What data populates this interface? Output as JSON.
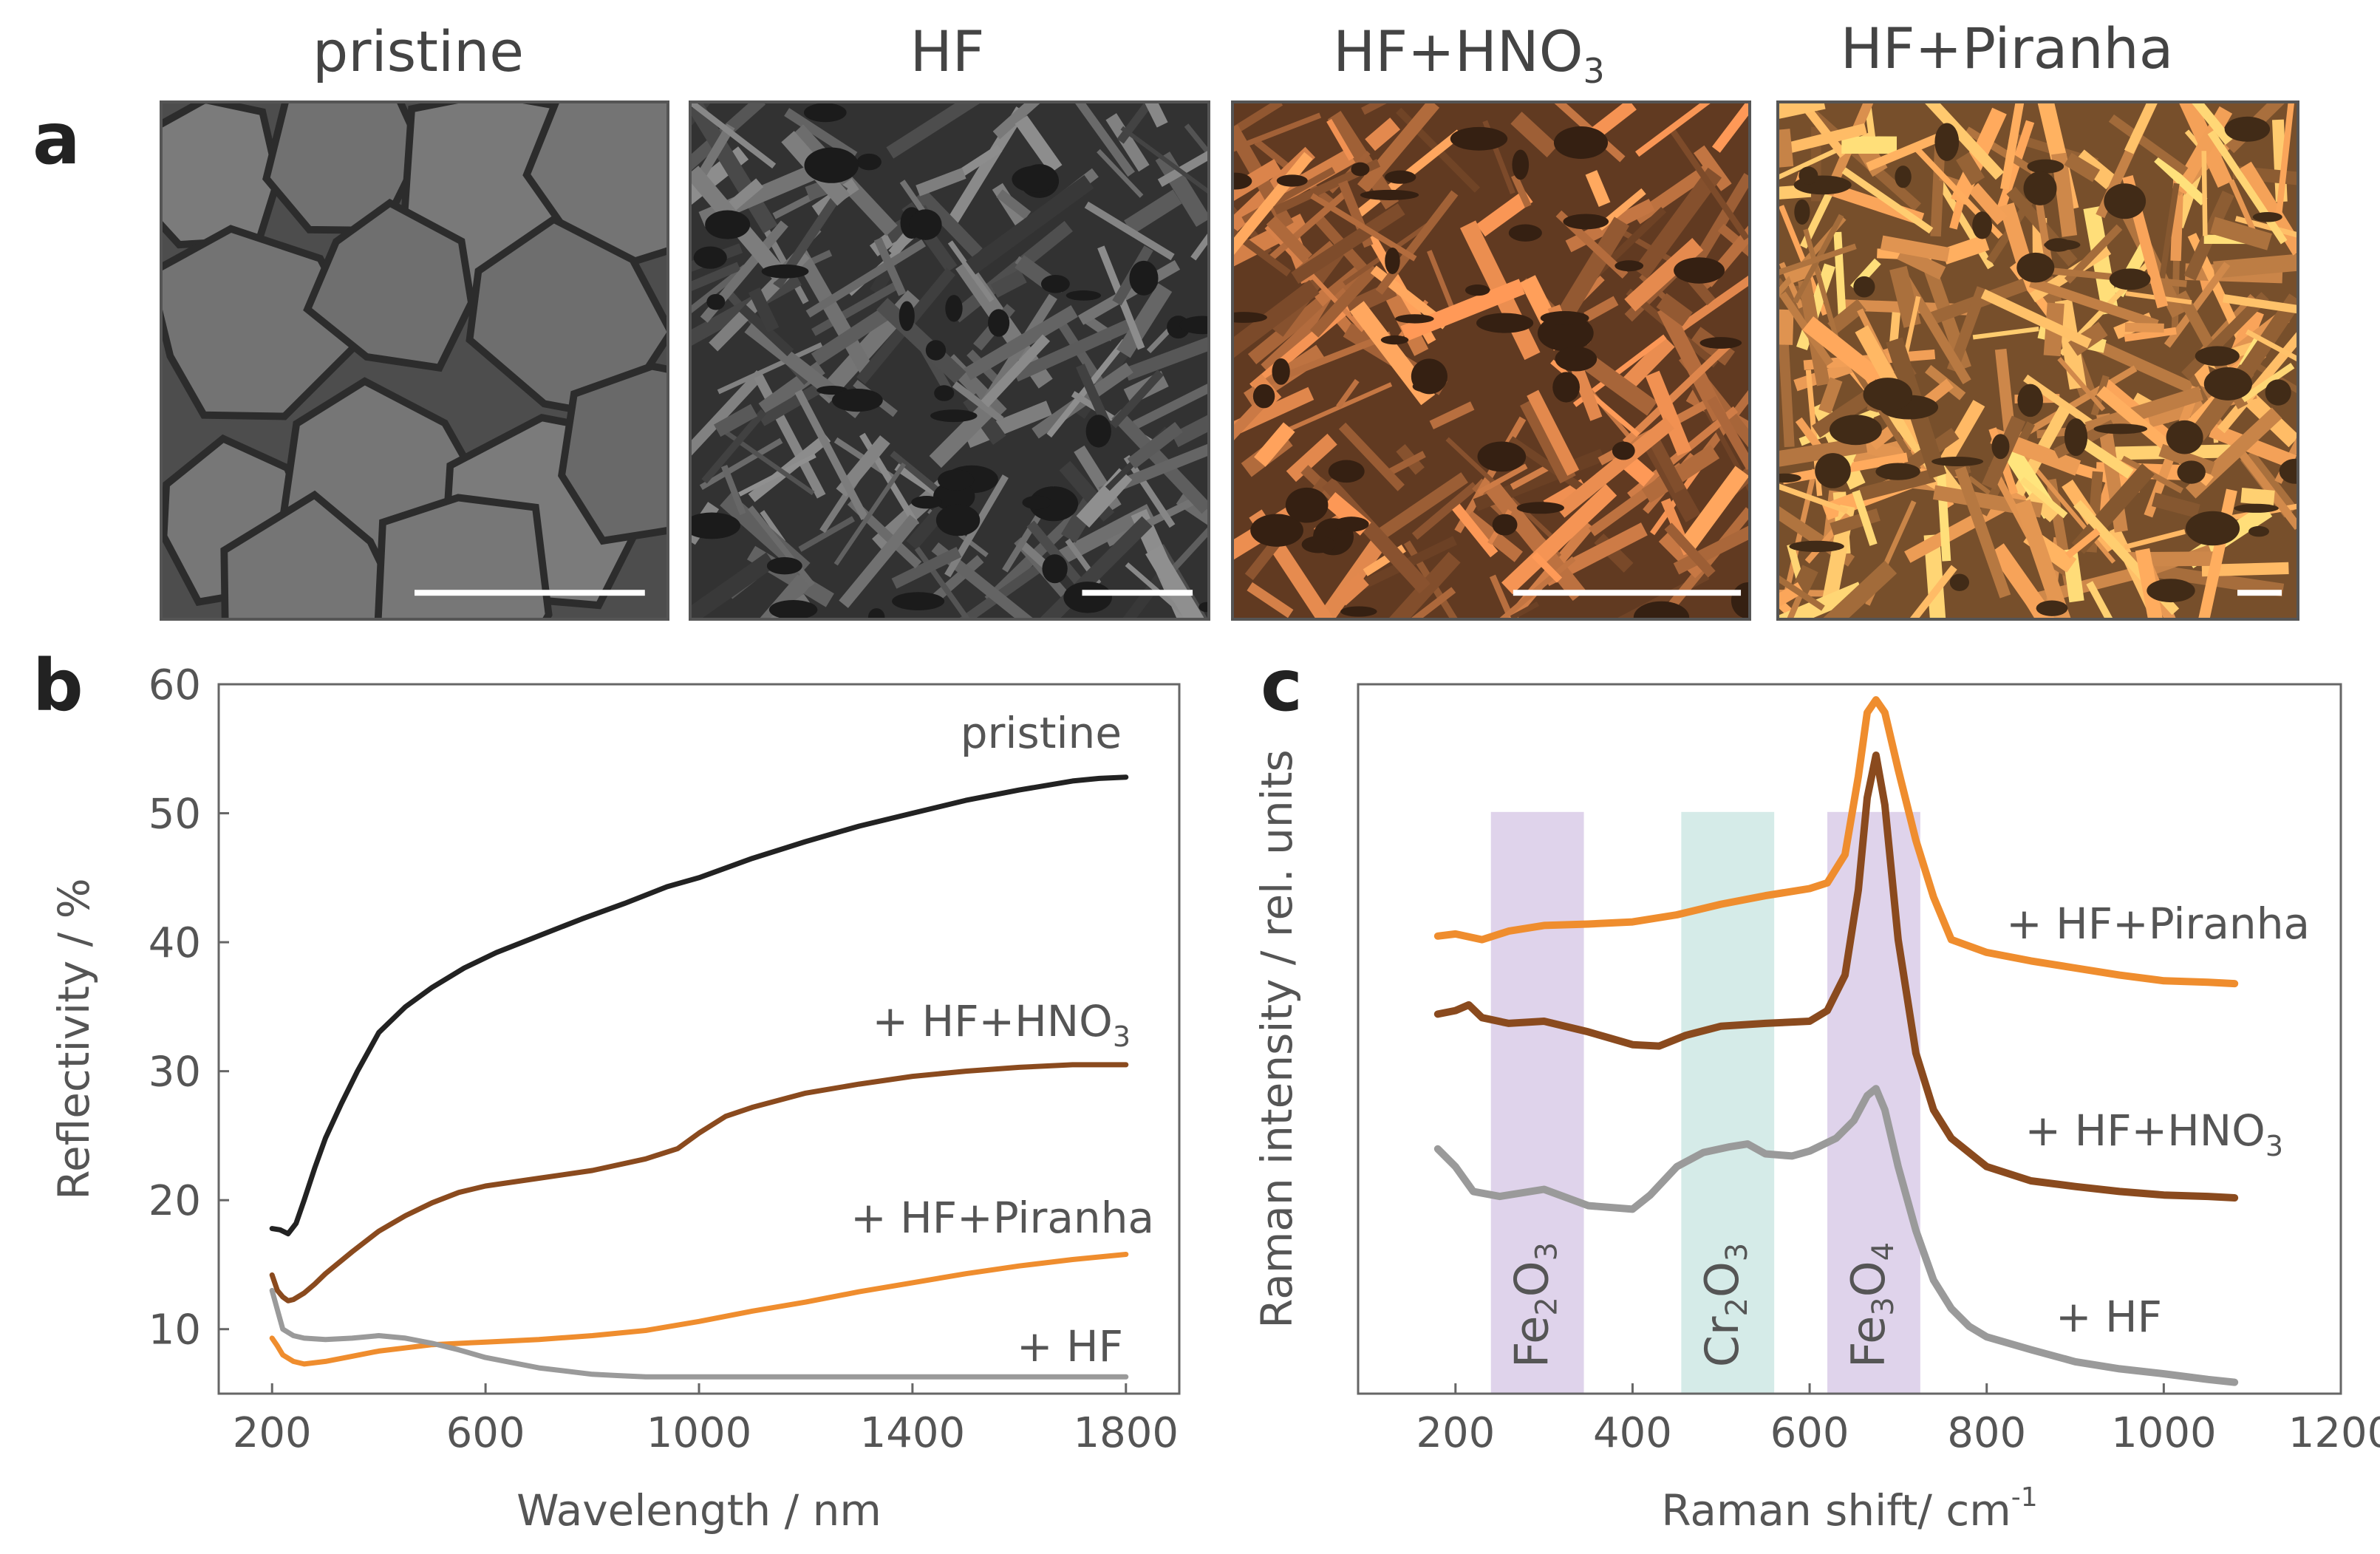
{
  "panel_labels": {
    "a": "a",
    "b": "b",
    "c": "c"
  },
  "sem_panels": [
    {
      "title": "pristine",
      "title_sub": "",
      "title_tail": "",
      "style": "gray-grains",
      "base_color": "#6e6e6e"
    },
    {
      "title": "HF",
      "title_sub": "",
      "title_tail": "",
      "style": "gray-plates",
      "base_color": "#5a5a5a"
    },
    {
      "title": "HF+HNO",
      "title_sub": "3",
      "title_tail": "",
      "style": "copper-plates",
      "base_color": "#b06a3c"
    },
    {
      "title": "HF+Piranha",
      "title_sub": "",
      "title_tail": "",
      "style": "orange-porous",
      "base_color": "#d98f4e"
    }
  ],
  "chart_data": [
    {
      "type": "line",
      "panel": "b",
      "xlabel": "Wavelength / nm",
      "ylabel": "Reflectivity / %",
      "xlim": [
        100,
        1900
      ],
      "ylim": [
        5,
        60
      ],
      "xticks": [
        200,
        600,
        1000,
        1400,
        1800
      ],
      "yticks": [
        10,
        20,
        30,
        40,
        50,
        60
      ],
      "grid": false,
      "series": [
        {
          "name": "pristine",
          "label": "pristine",
          "label_sub": "",
          "color": "#222222",
          "x": [
            200,
            215,
            230,
            245,
            260,
            280,
            300,
            330,
            360,
            400,
            450,
            500,
            560,
            620,
            700,
            780,
            860,
            940,
            1000,
            1100,
            1200,
            1300,
            1400,
            1500,
            1600,
            1700,
            1750,
            1800
          ],
          "y": [
            17.8,
            17.7,
            17.4,
            18.2,
            20.0,
            22.5,
            24.8,
            27.5,
            30.0,
            33.0,
            35.0,
            36.5,
            38.0,
            39.2,
            40.5,
            41.8,
            43.0,
            44.3,
            45.0,
            46.5,
            47.8,
            49.0,
            50.0,
            51.0,
            51.8,
            52.5,
            52.7,
            52.8
          ]
        },
        {
          "name": "+ HF+HNO3",
          "label": "+ HF+HNO",
          "label_sub": "3",
          "color": "#8a4a1e",
          "x": [
            200,
            210,
            220,
            230,
            240,
            260,
            280,
            300,
            350,
            400,
            450,
            500,
            550,
            600,
            700,
            800,
            900,
            960,
            1000,
            1050,
            1100,
            1200,
            1300,
            1400,
            1500,
            1600,
            1700,
            1800
          ],
          "y": [
            14.2,
            13.0,
            12.5,
            12.2,
            12.3,
            12.8,
            13.5,
            14.3,
            16.0,
            17.6,
            18.8,
            19.8,
            20.6,
            21.1,
            21.7,
            22.3,
            23.2,
            24.0,
            25.2,
            26.5,
            27.2,
            28.3,
            29.0,
            29.6,
            30.0,
            30.3,
            30.5,
            30.5
          ]
        },
        {
          "name": "+ HF+Piranha",
          "label": "+ HF+Piranha",
          "label_sub": "",
          "color": "#ef8d2e",
          "x": [
            200,
            210,
            220,
            240,
            260,
            280,
            300,
            350,
            400,
            500,
            600,
            700,
            800,
            900,
            1000,
            1100,
            1200,
            1300,
            1400,
            1500,
            1600,
            1700,
            1800
          ],
          "y": [
            9.3,
            8.7,
            8.0,
            7.5,
            7.3,
            7.4,
            7.5,
            7.9,
            8.3,
            8.8,
            9.0,
            9.2,
            9.5,
            9.9,
            10.6,
            11.4,
            12.1,
            12.9,
            13.6,
            14.3,
            14.9,
            15.4,
            15.8
          ]
        },
        {
          "name": "+ HF",
          "label": "+ HF",
          "label_sub": "",
          "color": "#9a9a9a",
          "x": [
            200,
            210,
            220,
            240,
            260,
            300,
            350,
            400,
            450,
            500,
            550,
            600,
            700,
            800,
            850,
            900,
            1000,
            1200,
            1400,
            1600,
            1800
          ],
          "y": [
            13.0,
            11.5,
            10.0,
            9.5,
            9.3,
            9.2,
            9.3,
            9.5,
            9.3,
            8.9,
            8.4,
            7.8,
            7.0,
            6.5,
            6.4,
            6.3,
            6.3,
            6.3,
            6.3,
            6.3,
            6.3
          ]
        }
      ]
    },
    {
      "type": "line",
      "panel": "c",
      "xlabel": "Raman shift/ cm",
      "xlabel_sup": "-1",
      "ylabel": "Raman intensity / rel. units",
      "xlim": [
        90,
        1200
      ],
      "ylim": [
        0,
        1
      ],
      "xticks": [
        200,
        400,
        600,
        800,
        1000,
        1200
      ],
      "yticks": [],
      "grid": false,
      "bands": [
        {
          "name": "Fe2O3",
          "label": "Fe",
          "sub1": "2",
          "mid": "O",
          "sub2": "3",
          "x0": 240,
          "x1": 345,
          "color": "#c9b6dd"
        },
        {
          "name": "Cr2O3",
          "label": "Cr",
          "sub1": "2",
          "mid": "O",
          "sub2": "3",
          "x0": 455,
          "x1": 560,
          "color": "#b9ddd9"
        },
        {
          "name": "Fe3O4",
          "label": "Fe",
          "sub1": "3",
          "mid": "O",
          "sub2": "4",
          "x0": 620,
          "x1": 725,
          "color": "#c9b6dd"
        }
      ],
      "series": [
        {
          "name": "+ HF+Piranha",
          "label": "+ HF+Piranha",
          "label_sub": "",
          "color": "#ef8d2e",
          "x": [
            180,
            200,
            230,
            260,
            300,
            350,
            400,
            450,
            500,
            550,
            600,
            620,
            640,
            655,
            665,
            675,
            685,
            700,
            720,
            740,
            760,
            800,
            850,
            900,
            950,
            1000,
            1050,
            1080
          ],
          "y": [
            0.645,
            0.648,
            0.64,
            0.652,
            0.66,
            0.662,
            0.665,
            0.675,
            0.69,
            0.702,
            0.712,
            0.72,
            0.76,
            0.87,
            0.96,
            0.978,
            0.96,
            0.88,
            0.78,
            0.7,
            0.64,
            0.622,
            0.61,
            0.6,
            0.59,
            0.582,
            0.58,
            0.578
          ]
        },
        {
          "name": "+ HF+HNO3",
          "label": "+ HF+HNO",
          "label_sub": "3",
          "color": "#8a4a1e",
          "x": [
            180,
            200,
            215,
            230,
            260,
            300,
            350,
            400,
            430,
            460,
            500,
            550,
            600,
            620,
            640,
            655,
            665,
            675,
            685,
            700,
            720,
            740,
            760,
            800,
            850,
            900,
            950,
            1000,
            1050,
            1080
          ],
          "y": [
            0.535,
            0.54,
            0.548,
            0.53,
            0.522,
            0.525,
            0.51,
            0.492,
            0.49,
            0.505,
            0.518,
            0.522,
            0.525,
            0.54,
            0.59,
            0.71,
            0.84,
            0.9,
            0.83,
            0.64,
            0.48,
            0.4,
            0.36,
            0.32,
            0.3,
            0.292,
            0.285,
            0.28,
            0.278,
            0.276
          ]
        },
        {
          "name": "+ HF",
          "label": "+ HF",
          "label_sub": "",
          "color": "#9a9a9a",
          "x": [
            180,
            200,
            220,
            250,
            300,
            350,
            400,
            420,
            450,
            480,
            510,
            530,
            550,
            580,
            600,
            630,
            650,
            665,
            675,
            685,
            700,
            720,
            740,
            760,
            780,
            800,
            850,
            900,
            950,
            1000,
            1050,
            1080
          ],
          "y": [
            0.345,
            0.32,
            0.285,
            0.278,
            0.288,
            0.265,
            0.26,
            0.28,
            0.32,
            0.34,
            0.348,
            0.352,
            0.338,
            0.335,
            0.342,
            0.36,
            0.385,
            0.42,
            0.43,
            0.4,
            0.32,
            0.23,
            0.16,
            0.12,
            0.095,
            0.08,
            0.062,
            0.045,
            0.035,
            0.028,
            0.02,
            0.016
          ]
        }
      ]
    }
  ]
}
